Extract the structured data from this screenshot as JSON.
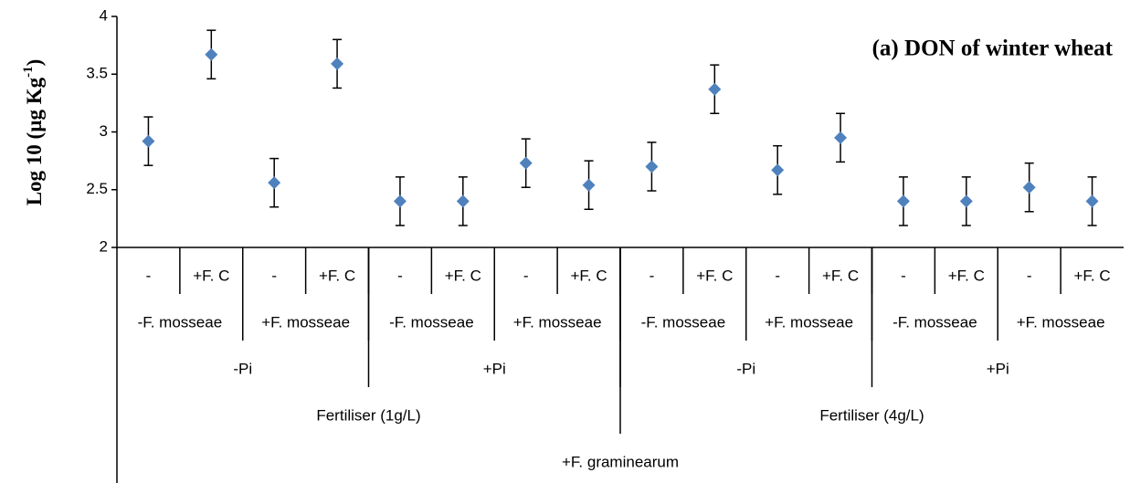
{
  "chart_data": {
    "type": "scatter",
    "annotation": "(a) DON of winter wheat",
    "ylabel_parts": [
      "Log 10 (µg Kg",
      "-1",
      ")"
    ],
    "categories": [
      "-",
      "+F. C",
      "-",
      "+F. C",
      "-",
      "+F. C",
      "-",
      "+F. C",
      "-",
      "+F. C",
      "-",
      "+F. C",
      "-",
      "+F. C",
      "-",
      "+F. C"
    ],
    "category_levels": [
      [
        "-F. mosseae",
        "+F. mosseae",
        "-F. mosseae",
        "+F. mosseae",
        "-F. mosseae",
        "+F. mosseae",
        "-F. mosseae",
        "+F. mosseae"
      ],
      [
        "-Pi",
        "+Pi",
        "-Pi",
        "+Pi"
      ],
      [
        "Fertiliser (1g/L)",
        "Fertiliser (4g/L)"
      ],
      [
        "+F. graminearum"
      ]
    ],
    "series": [
      {
        "color": "#4f81bd",
        "values": [
          2.92,
          3.67,
          2.56,
          3.59,
          2.4,
          2.4,
          2.73,
          2.54,
          2.7,
          3.37,
          2.67,
          2.95,
          2.4,
          2.4,
          2.52,
          2.4
        ],
        "errors": [
          0.21,
          0.21,
          0.21,
          0.21,
          0.21,
          0.21,
          0.21,
          0.21,
          0.21,
          0.21,
          0.21,
          0.21,
          0.21,
          0.21,
          0.21,
          0.21
        ]
      }
    ],
    "ylim": [
      2,
      4
    ],
    "yticks": [
      2,
      2.5,
      3,
      3.5,
      4
    ]
  }
}
